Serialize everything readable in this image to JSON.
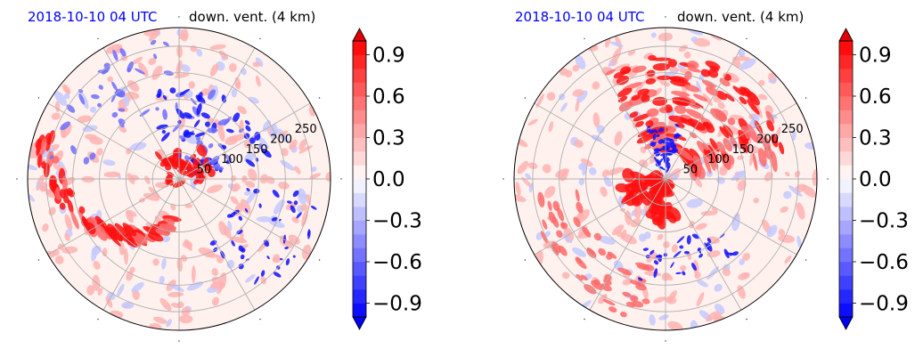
{
  "chart_data": [
    {
      "type": "heatmap",
      "projection": "polar",
      "title_left": "2018-10-10 04 UTC",
      "title_right": "down. vent. (4 km)",
      "radial_ticks": [
        50,
        100,
        150,
        200,
        250
      ],
      "r_max": 285,
      "theta_grid_deg": [
        0,
        30,
        60,
        90,
        120,
        150,
        180,
        210,
        240,
        270,
        300,
        330
      ],
      "grid": true,
      "colormap": "bwr",
      "colorbar": {
        "ticks": [
          "0.9",
          "0.6",
          "0.3",
          "0.0",
          "−0.3",
          "−0.6",
          "−0.9"
        ],
        "vmin": -1.0,
        "vmax": 1.0,
        "extend": "both",
        "levels": 21
      }
    },
    {
      "type": "heatmap",
      "projection": "polar",
      "title_left": "2018-10-10 04 UTC",
      "title_right": "down. vent. (4 km)",
      "radial_ticks": [
        50,
        100,
        150,
        200,
        250
      ],
      "r_max": 285,
      "theta_grid_deg": [
        0,
        30,
        60,
        90,
        120,
        150,
        180,
        210,
        240,
        270,
        300,
        330
      ],
      "grid": true,
      "colormap": "bwr",
      "colorbar": {
        "ticks": [
          "0.9",
          "0.6",
          "0.3",
          "0.0",
          "−0.3",
          "−0.6",
          "−0.9"
        ],
        "vmin": -1.0,
        "vmax": 1.0,
        "extend": "both",
        "levels": 21
      }
    }
  ],
  "colors": {
    "positive": "#ff0000",
    "negative": "#0000ff",
    "neutral": "#ffffff",
    "title_date": "#0000ff",
    "grid": "#b0b0b0"
  }
}
